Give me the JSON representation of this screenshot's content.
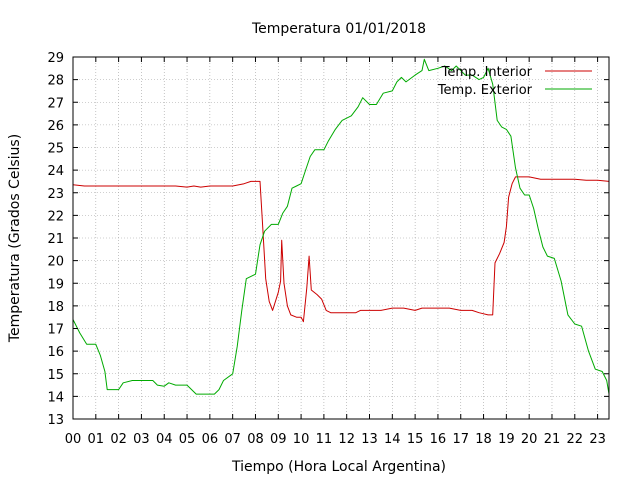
{
  "chart_data": {
    "type": "line",
    "title": "Temperatura 01/01/2018",
    "xlabel": "Tiempo (Hora Local Argentina)",
    "ylabel": "Temperatura (Grados Celsius)",
    "xlim": [
      0,
      23.5
    ],
    "ylim": [
      13,
      29
    ],
    "grid": true,
    "legend": "top-right",
    "x_ticks": [
      {
        "v": 0,
        "label": "00"
      },
      {
        "v": 1,
        "label": "01"
      },
      {
        "v": 2,
        "label": "02"
      },
      {
        "v": 3,
        "label": "03"
      },
      {
        "v": 4,
        "label": "04"
      },
      {
        "v": 5,
        "label": "05"
      },
      {
        "v": 6,
        "label": "06"
      },
      {
        "v": 7,
        "label": "07"
      },
      {
        "v": 8,
        "label": "08"
      },
      {
        "v": 9,
        "label": "09"
      },
      {
        "v": 10,
        "label": "10"
      },
      {
        "v": 11,
        "label": "11"
      },
      {
        "v": 12,
        "label": "12"
      },
      {
        "v": 13,
        "label": "13"
      },
      {
        "v": 14,
        "label": "14"
      },
      {
        "v": 15,
        "label": "15"
      },
      {
        "v": 16,
        "label": "16"
      },
      {
        "v": 17,
        "label": "17"
      },
      {
        "v": 18,
        "label": "18"
      },
      {
        "v": 19,
        "label": "19"
      },
      {
        "v": 20,
        "label": "20"
      },
      {
        "v": 21,
        "label": "21"
      },
      {
        "v": 22,
        "label": "22"
      },
      {
        "v": 23,
        "label": "23"
      }
    ],
    "y_ticks": [
      {
        "v": 13,
        "label": "13"
      },
      {
        "v": 14,
        "label": "14"
      },
      {
        "v": 15,
        "label": "15"
      },
      {
        "v": 16,
        "label": "16"
      },
      {
        "v": 17,
        "label": "17"
      },
      {
        "v": 18,
        "label": "18"
      },
      {
        "v": 19,
        "label": "19"
      },
      {
        "v": 20,
        "label": "20"
      },
      {
        "v": 21,
        "label": "21"
      },
      {
        "v": 22,
        "label": "22"
      },
      {
        "v": 23,
        "label": "23"
      },
      {
        "v": 24,
        "label": "24"
      },
      {
        "v": 25,
        "label": "25"
      },
      {
        "v": 26,
        "label": "26"
      },
      {
        "v": 27,
        "label": "27"
      },
      {
        "v": 28,
        "label": "28"
      },
      {
        "v": 29,
        "label": "29"
      }
    ],
    "series": [
      {
        "name": "Temp. Interior",
        "color": "#cc0000",
        "points": [
          [
            0.0,
            23.35
          ],
          [
            0.5,
            23.3
          ],
          [
            1.0,
            23.3
          ],
          [
            2.0,
            23.3
          ],
          [
            3.0,
            23.3
          ],
          [
            4.0,
            23.3
          ],
          [
            4.5,
            23.3
          ],
          [
            5.0,
            23.25
          ],
          [
            5.3,
            23.3
          ],
          [
            5.6,
            23.25
          ],
          [
            6.0,
            23.3
          ],
          [
            6.5,
            23.3
          ],
          [
            7.0,
            23.3
          ],
          [
            7.5,
            23.4
          ],
          [
            7.8,
            23.5
          ],
          [
            8.2,
            23.5
          ],
          [
            8.3,
            21.8
          ],
          [
            8.45,
            19.2
          ],
          [
            8.6,
            18.2
          ],
          [
            8.75,
            17.8
          ],
          [
            9.0,
            18.6
          ],
          [
            9.1,
            19.1
          ],
          [
            9.15,
            20.9
          ],
          [
            9.25,
            19.0
          ],
          [
            9.4,
            18.0
          ],
          [
            9.55,
            17.6
          ],
          [
            9.8,
            17.5
          ],
          [
            10.0,
            17.5
          ],
          [
            10.1,
            17.3
          ],
          [
            10.25,
            18.8
          ],
          [
            10.35,
            20.2
          ],
          [
            10.45,
            18.7
          ],
          [
            10.7,
            18.5
          ],
          [
            10.9,
            18.3
          ],
          [
            11.1,
            17.8
          ],
          [
            11.3,
            17.7
          ],
          [
            11.8,
            17.7
          ],
          [
            12.4,
            17.7
          ],
          [
            12.6,
            17.8
          ],
          [
            13.0,
            17.8
          ],
          [
            13.5,
            17.8
          ],
          [
            14.0,
            17.9
          ],
          [
            14.5,
            17.9
          ],
          [
            15.0,
            17.8
          ],
          [
            15.3,
            17.9
          ],
          [
            16.0,
            17.9
          ],
          [
            16.5,
            17.9
          ],
          [
            17.0,
            17.8
          ],
          [
            17.5,
            17.8
          ],
          [
            17.8,
            17.7
          ],
          [
            18.2,
            17.6
          ],
          [
            18.4,
            17.6
          ],
          [
            18.5,
            19.9
          ],
          [
            18.7,
            20.3
          ],
          [
            18.9,
            20.8
          ],
          [
            19.0,
            21.5
          ],
          [
            19.1,
            22.8
          ],
          [
            19.25,
            23.4
          ],
          [
            19.4,
            23.7
          ],
          [
            20.0,
            23.7
          ],
          [
            20.5,
            23.6
          ],
          [
            21.0,
            23.6
          ],
          [
            22.0,
            23.6
          ],
          [
            22.5,
            23.55
          ],
          [
            23.0,
            23.55
          ],
          [
            23.5,
            23.5
          ]
        ]
      },
      {
        "name": "Temp. Exterior",
        "color": "#00aa00",
        "points": [
          [
            0.0,
            17.4
          ],
          [
            0.3,
            16.8
          ],
          [
            0.6,
            16.3
          ],
          [
            1.0,
            16.3
          ],
          [
            1.2,
            15.8
          ],
          [
            1.4,
            15.1
          ],
          [
            1.5,
            14.3
          ],
          [
            2.0,
            14.3
          ],
          [
            2.2,
            14.6
          ],
          [
            2.6,
            14.7
          ],
          [
            3.0,
            14.7
          ],
          [
            3.5,
            14.7
          ],
          [
            3.7,
            14.5
          ],
          [
            4.0,
            14.45
          ],
          [
            4.2,
            14.6
          ],
          [
            4.5,
            14.5
          ],
          [
            5.0,
            14.5
          ],
          [
            5.2,
            14.3
          ],
          [
            5.4,
            14.1
          ],
          [
            5.8,
            14.1
          ],
          [
            6.2,
            14.1
          ],
          [
            6.4,
            14.3
          ],
          [
            6.6,
            14.7
          ],
          [
            7.0,
            15.0
          ],
          [
            7.2,
            16.2
          ],
          [
            7.4,
            17.8
          ],
          [
            7.6,
            19.2
          ],
          [
            8.0,
            19.4
          ],
          [
            8.2,
            20.7
          ],
          [
            8.4,
            21.3
          ],
          [
            8.7,
            21.6
          ],
          [
            9.0,
            21.6
          ],
          [
            9.2,
            22.1
          ],
          [
            9.4,
            22.4
          ],
          [
            9.6,
            23.2
          ],
          [
            9.8,
            23.3
          ],
          [
            10.0,
            23.4
          ],
          [
            10.2,
            24.0
          ],
          [
            10.4,
            24.6
          ],
          [
            10.6,
            24.9
          ],
          [
            11.0,
            24.9
          ],
          [
            11.2,
            25.3
          ],
          [
            11.5,
            25.8
          ],
          [
            11.8,
            26.2
          ],
          [
            12.2,
            26.4
          ],
          [
            12.5,
            26.8
          ],
          [
            12.7,
            27.2
          ],
          [
            13.0,
            26.9
          ],
          [
            13.3,
            26.9
          ],
          [
            13.6,
            27.4
          ],
          [
            14.0,
            27.5
          ],
          [
            14.2,
            27.9
          ],
          [
            14.4,
            28.1
          ],
          [
            14.6,
            27.9
          ],
          [
            15.0,
            28.2
          ],
          [
            15.3,
            28.4
          ],
          [
            15.4,
            28.9
          ],
          [
            15.6,
            28.4
          ],
          [
            16.0,
            28.5
          ],
          [
            16.3,
            28.6
          ],
          [
            16.6,
            28.4
          ],
          [
            16.8,
            28.6
          ],
          [
            17.2,
            28.2
          ],
          [
            17.5,
            28.2
          ],
          [
            17.8,
            28.0
          ],
          [
            18.0,
            28.1
          ],
          [
            18.2,
            28.5
          ],
          [
            18.4,
            27.8
          ],
          [
            18.6,
            26.2
          ],
          [
            18.8,
            25.9
          ],
          [
            19.0,
            25.8
          ],
          [
            19.2,
            25.5
          ],
          [
            19.4,
            24.1
          ],
          [
            19.6,
            23.2
          ],
          [
            19.8,
            22.9
          ],
          [
            20.0,
            22.9
          ],
          [
            20.2,
            22.3
          ],
          [
            20.4,
            21.4
          ],
          [
            20.6,
            20.6
          ],
          [
            20.8,
            20.2
          ],
          [
            21.1,
            20.1
          ],
          [
            21.4,
            19.1
          ],
          [
            21.7,
            17.6
          ],
          [
            22.0,
            17.2
          ],
          [
            22.3,
            17.1
          ],
          [
            22.6,
            16.0
          ],
          [
            22.9,
            15.2
          ],
          [
            23.2,
            15.1
          ],
          [
            23.4,
            14.7
          ],
          [
            23.5,
            14.1
          ]
        ]
      }
    ]
  }
}
